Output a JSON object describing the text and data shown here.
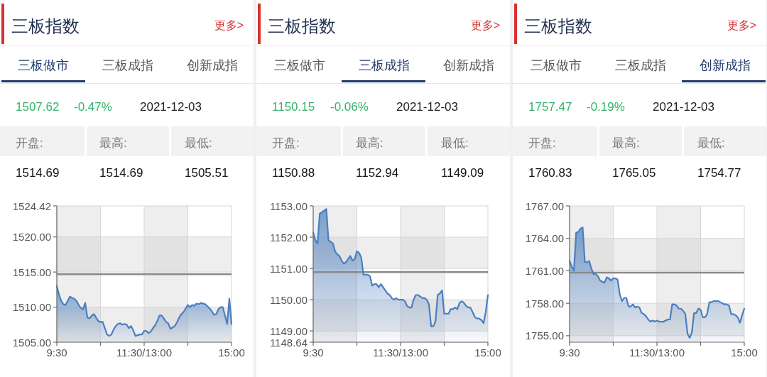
{
  "chart_data": [
    {
      "type": "area",
      "title": "三板指数",
      "annotations": [
        "更多>",
        "三板做市",
        "三板成指",
        "创新成指",
        "1507.62",
        "-0.47%",
        "2021-12-03",
        "开盘:",
        "最高:",
        "最低:",
        "1514.69",
        "1514.69",
        "1505.51"
      ],
      "categories": [
        "9:30",
        null,
        null,
        null,
        null,
        null,
        null,
        null,
        null,
        null,
        null,
        null,
        null,
        null,
        null,
        null,
        null,
        null,
        null,
        null,
        null,
        null,
        null,
        null,
        null,
        null,
        null,
        null,
        null,
        null,
        null,
        null,
        null,
        null,
        null,
        null,
        null,
        null,
        null,
        null,
        "11:30/13:00",
        null,
        null,
        null,
        null,
        null,
        null,
        null,
        null,
        null,
        null,
        null,
        null,
        null,
        null,
        null,
        null,
        null,
        null,
        null,
        null,
        null,
        null,
        null,
        null,
        null,
        null,
        null,
        null,
        null,
        null,
        null,
        null,
        null,
        null,
        null,
        null,
        null,
        null,
        null,
        "15:00"
      ],
      "series": [
        {
          "color": "#4b7fc0",
          "values": [
            1513.0,
            1511.8,
            1510.9,
            1510.4,
            1510.3,
            1510.9,
            1511.5,
            1511.3,
            1511.2,
            1510.9,
            1510.3,
            1509.9,
            1509.7,
            1510.6,
            1508.5,
            1508.4,
            1508.8,
            1509.0,
            1508.5,
            1508.0,
            1507.9,
            1507.9,
            1507.0,
            1506.1,
            1505.9,
            1506.1,
            1506.8,
            1507.3,
            1507.6,
            1507.7,
            1507.5,
            1507.6,
            1507.5,
            1507.0,
            1507.3,
            1506.7,
            1505.9,
            1506.0,
            1506.1,
            1506.1,
            1506.6,
            1506.6,
            1506.3,
            1506.5,
            1507.0,
            1507.4,
            1508.0,
            1508.8,
            1508.8,
            1508.4,
            1507.9,
            1507.7,
            1506.9,
            1507.1,
            1507.3,
            1507.8,
            1508.5,
            1509.0,
            1509.3,
            1509.8,
            1510.3,
            1510.0,
            1510.3,
            1510.2,
            1510.5,
            1510.4,
            1510.6,
            1510.5,
            1510.4,
            1510.1,
            1509.8,
            1509.4,
            1508.9,
            1509.0,
            1509.7,
            1510.0,
            1510.0,
            1508.8,
            1507.6,
            1511.2,
            1507.6
          ]
        }
      ],
      "ylim": [
        1505,
        1524.42
      ],
      "yticks": [
        {
          "value": 1505,
          "label": "1505.00"
        },
        {
          "value": 1510,
          "label": "1510.00"
        },
        {
          "value": 1515,
          "label": "1515.00"
        },
        {
          "value": 1520,
          "label": "1520.00"
        },
        1524.42
      ],
      "grid": true,
      "line_style": "solid",
      "ref_lines": [
        {
          "axis": "y",
          "value": 1514.69,
          "color": "#8a8a8a"
        }
      ]
    },
    {
      "type": "area",
      "title": "三板指数",
      "annotations": [
        "更多>",
        "三板做市",
        "三板成指",
        "创新成指",
        "1150.15",
        "-0.06%",
        "2021-12-03",
        "开盘:",
        "最高:",
        "最低:",
        "1150.88",
        "1152.94",
        "1149.09"
      ],
      "categories": [
        "9:30",
        null,
        null,
        null,
        null,
        null,
        null,
        null,
        null,
        null,
        null,
        null,
        null,
        null,
        null,
        null,
        null,
        null,
        null,
        null,
        null,
        null,
        null,
        null,
        null,
        null,
        null,
        null,
        null,
        null,
        null,
        null,
        null,
        null,
        null,
        null,
        null,
        null,
        null,
        null,
        "11:30/13:00",
        null,
        null,
        null,
        null,
        null,
        null,
        null,
        null,
        null,
        null,
        null,
        null,
        null,
        null,
        null,
        null,
        null,
        null,
        null,
        null,
        null,
        null,
        null,
        null,
        null,
        null,
        null,
        null,
        null,
        null,
        null,
        null,
        null,
        null,
        null,
        null,
        null,
        null,
        null,
        "15:00"
      ],
      "series": [
        {
          "color": "#4b7fc0",
          "values": [
            1152.15,
            1151.9,
            1151.8,
            1152.75,
            1152.8,
            1152.85,
            1152.9,
            1151.9,
            1151.85,
            1151.8,
            1151.55,
            1151.45,
            1151.4,
            1151.25,
            1151.15,
            1151.2,
            1151.3,
            1151.4,
            1151.25,
            1151.3,
            1151.55,
            1151.5,
            1151.35,
            1150.8,
            1150.8,
            1150.8,
            1150.75,
            1150.45,
            1150.5,
            1150.5,
            1150.4,
            1150.5,
            1150.4,
            1150.3,
            1150.2,
            1150.15,
            1150.05,
            1150.0,
            1150.05,
            1150.0,
            1150.0,
            1150.0,
            1149.95,
            1149.8,
            1149.75,
            1149.75,
            1150.0,
            1150.15,
            1150.15,
            1150.1,
            1150.05,
            1150.05,
            1150.0,
            1149.85,
            1149.15,
            1149.15,
            1149.3,
            1150.15,
            1150.2,
            1150.3,
            1149.55,
            1149.55,
            1149.55,
            1149.7,
            1149.7,
            1149.75,
            1149.7,
            1149.9,
            1149.95,
            1149.9,
            1149.8,
            1149.75,
            1149.75,
            1149.6,
            1149.45,
            1149.4,
            1149.4,
            1149.35,
            1149.25,
            1149.6,
            1150.15
          ]
        }
      ],
      "ylim": [
        1148.64,
        1153
      ],
      "yticks": [
        1148.64,
        {
          "value": 1149,
          "label": "1149.00"
        },
        {
          "value": 1150,
          "label": "1150.00"
        },
        {
          "value": 1151,
          "label": "1151.00"
        },
        {
          "value": 1152,
          "label": "1152.00"
        },
        {
          "value": 1153,
          "label": "1153.00"
        }
      ],
      "grid": true,
      "line_style": "solid",
      "ref_lines": [
        {
          "axis": "y",
          "value": 1150.88,
          "color": "#8a8a8a"
        }
      ]
    },
    {
      "type": "area",
      "title": "三板指数",
      "annotations": [
        "更多>",
        "三板做市",
        "三板成指",
        "创新成指",
        "1757.47",
        "-0.19%",
        "2021-12-03",
        "开盘:",
        "最高:",
        "最低:",
        "1760.83",
        "1765.05",
        "1754.77"
      ],
      "categories": [
        "9:30",
        null,
        null,
        null,
        null,
        null,
        null,
        null,
        null,
        null,
        null,
        null,
        null,
        null,
        null,
        null,
        null,
        null,
        null,
        null,
        null,
        null,
        null,
        null,
        null,
        null,
        null,
        null,
        null,
        null,
        null,
        null,
        null,
        null,
        null,
        null,
        null,
        null,
        null,
        null,
        "11:30/13:00",
        null,
        null,
        null,
        null,
        null,
        null,
        null,
        null,
        null,
        null,
        null,
        null,
        null,
        null,
        null,
        null,
        null,
        null,
        null,
        null,
        null,
        null,
        null,
        null,
        null,
        null,
        null,
        null,
        null,
        null,
        null,
        null,
        null,
        null,
        null,
        null,
        null,
        null,
        null,
        "15:00"
      ],
      "series": [
        {
          "color": "#4b7fc0",
          "values": [
            1761.9,
            1761.4,
            1761.0,
            1764.5,
            1764.6,
            1764.9,
            1765.0,
            1761.8,
            1761.8,
            1761.9,
            1761.2,
            1760.7,
            1760.7,
            1760.5,
            1760.1,
            1760.0,
            1759.9,
            1760.4,
            1760.3,
            1760.1,
            1760.3,
            1760.3,
            1760.2,
            1758.8,
            1758.2,
            1758.5,
            1758.5,
            1757.7,
            1757.7,
            1757.9,
            1757.6,
            1757.7,
            1757.6,
            1757.1,
            1757.0,
            1756.8,
            1756.5,
            1756.3,
            1756.4,
            1756.3,
            1756.4,
            1756.3,
            1756.3,
            1756.3,
            1756.4,
            1756.5,
            1756.5,
            1757.9,
            1757.9,
            1757.8,
            1757.5,
            1757.5,
            1757.3,
            1757.0,
            1755.2,
            1754.8,
            1755.3,
            1757.1,
            1757.1,
            1757.5,
            1757.4,
            1756.7,
            1756.7,
            1757.0,
            1758.1,
            1758.1,
            1758.2,
            1758.2,
            1758.2,
            1758.1,
            1758.0,
            1757.9,
            1757.9,
            1757.8,
            1757.0,
            1757.0,
            1756.9,
            1756.7,
            1756.2,
            1756.9,
            1757.5
          ]
        }
      ],
      "ylim": [
        1754.4,
        1767
      ],
      "yticks": [
        {
          "value": 1755,
          "label": "1755.00"
        },
        {
          "value": 1758,
          "label": "1758.00"
        },
        {
          "value": 1761,
          "label": "1761.00"
        },
        {
          "value": 1764,
          "label": "1764.00"
        },
        {
          "value": 1767,
          "label": "1767.00"
        }
      ],
      "grid": true,
      "line_style": "solid",
      "ref_lines": [
        {
          "axis": "y",
          "value": 1760.83,
          "color": "#8a8a8a"
        }
      ]
    }
  ]
}
